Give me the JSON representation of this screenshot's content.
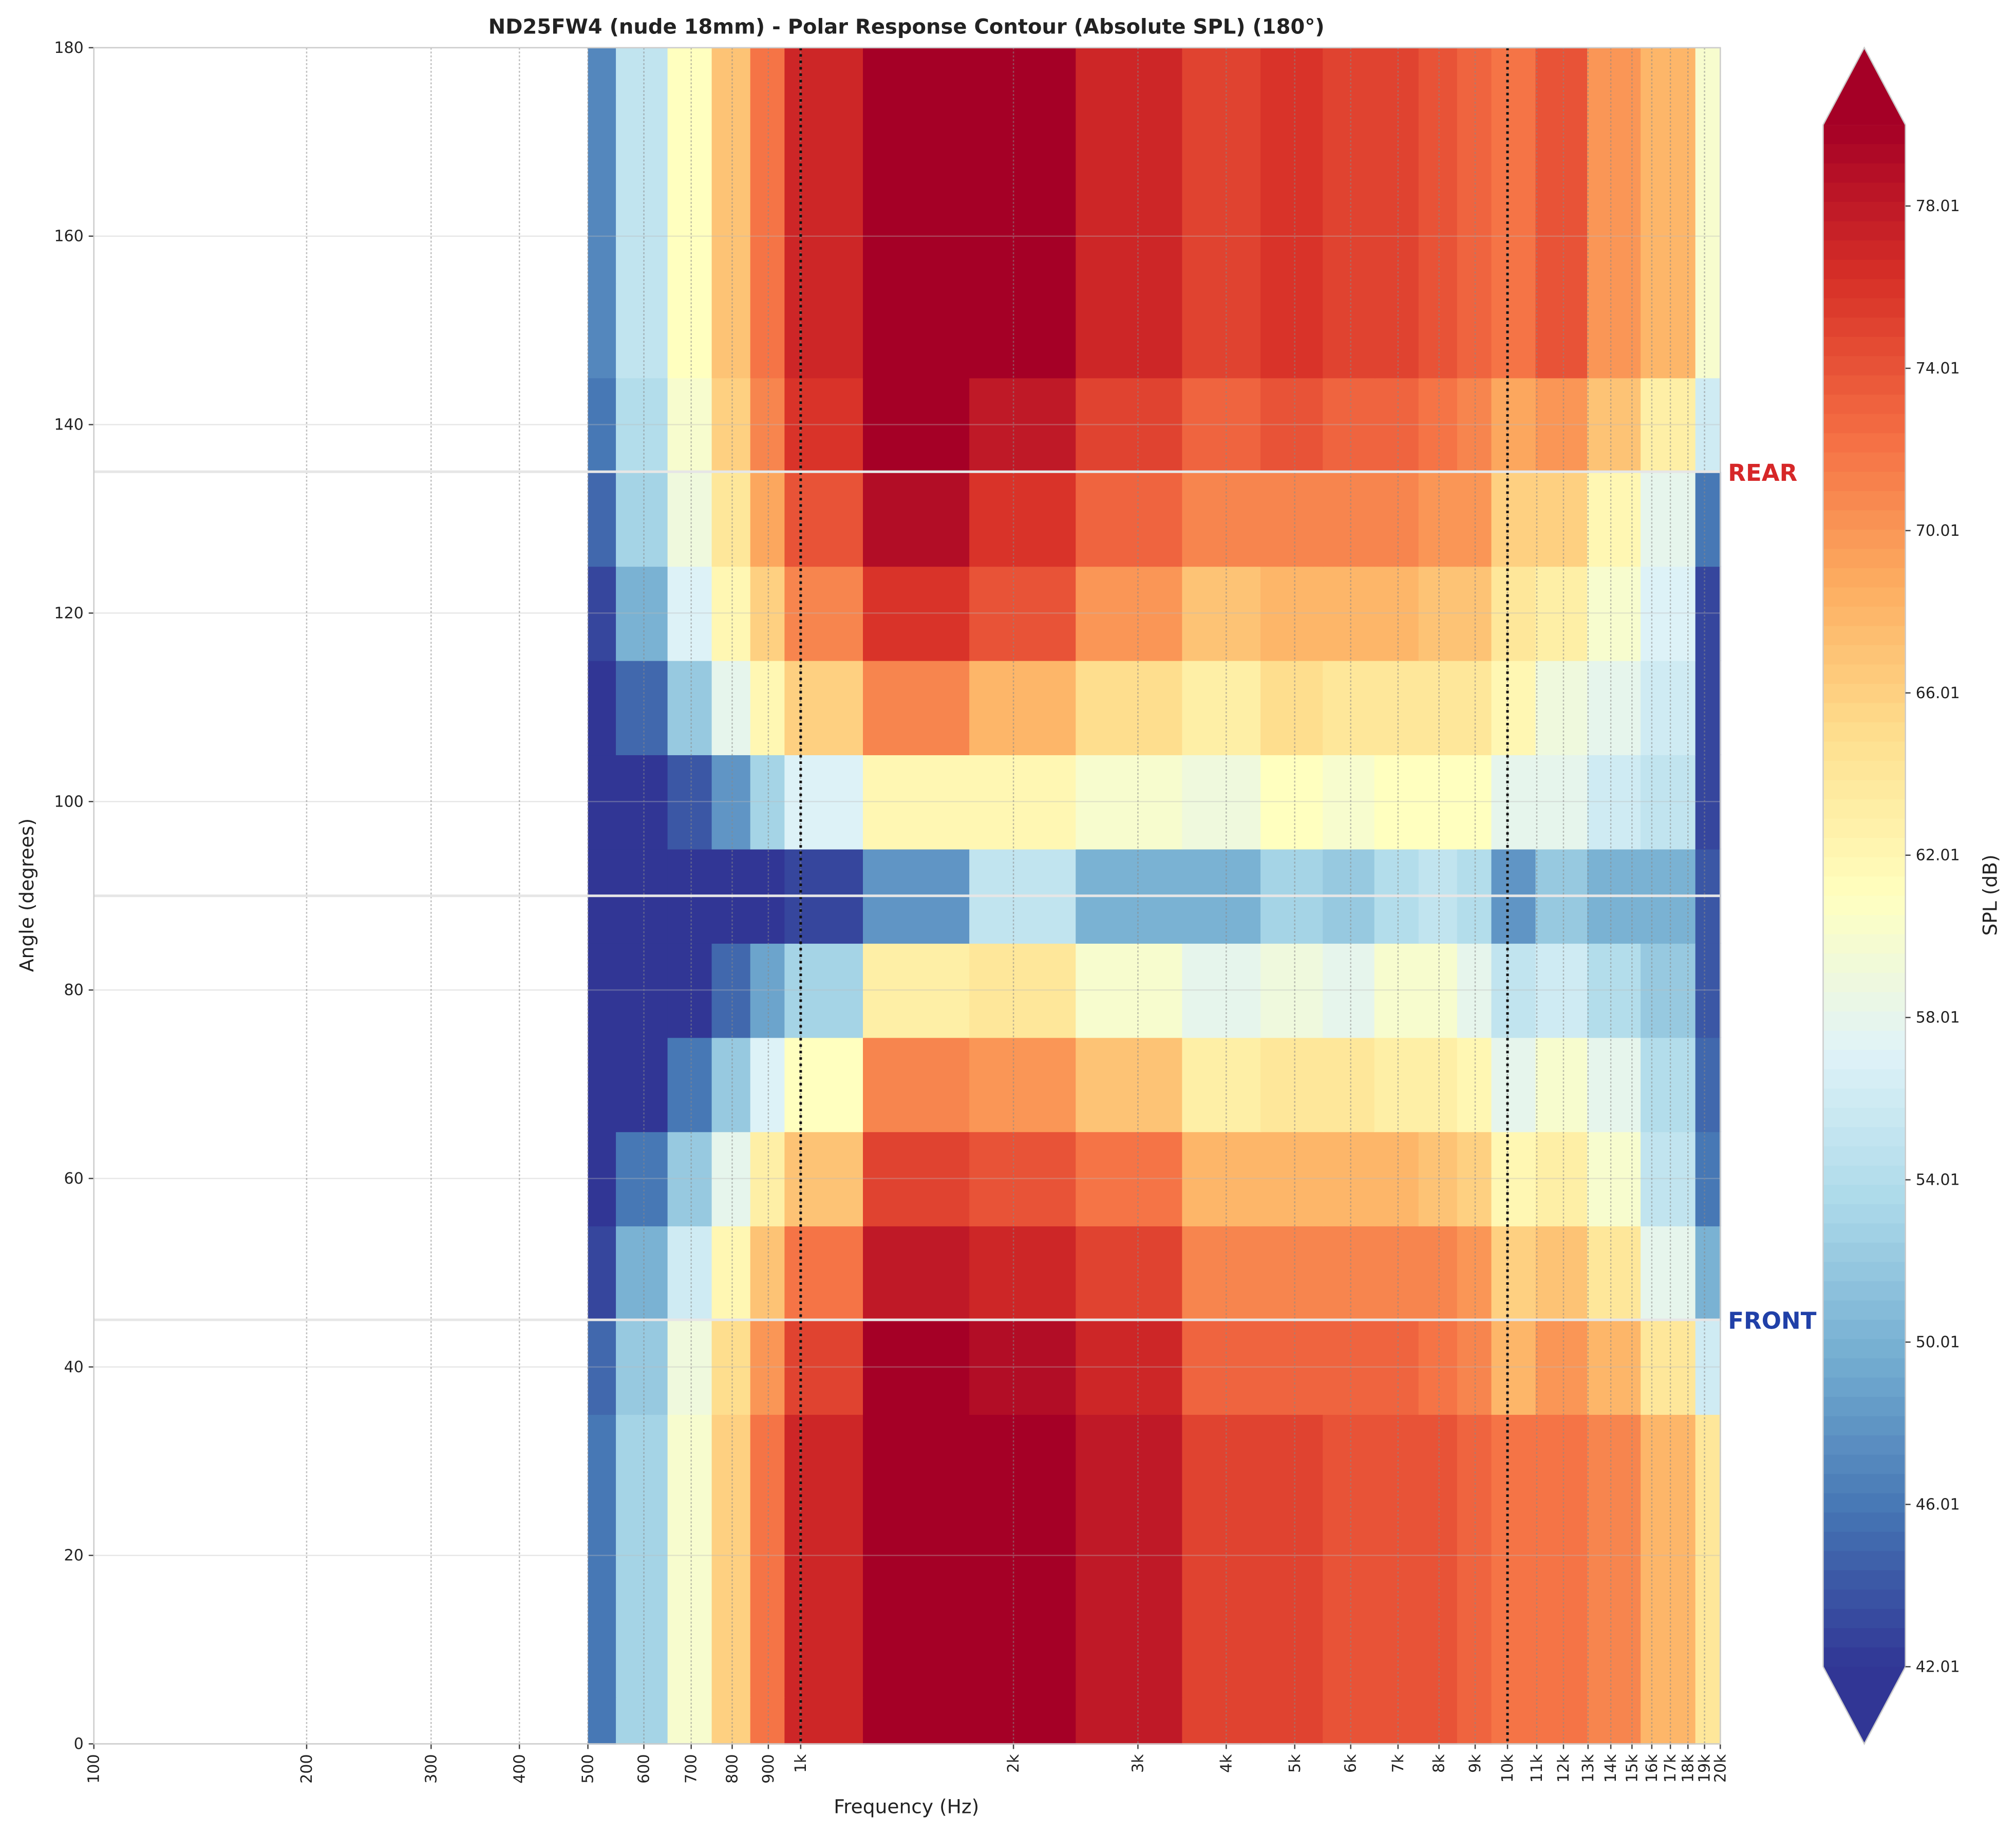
{
  "chart_data": {
    "type": "contour",
    "title": "ND25FW4 (nude 18mm) - Polar Response Contour (Absolute SPL) (180°)",
    "xlabel": "Frequency (Hz)",
    "ylabel": "Angle (degrees)",
    "colorbar_label": "SPL (dB)",
    "xscale": "log",
    "xlim": [
      100,
      20000
    ],
    "ylim": [
      0,
      180
    ],
    "zlim": [
      42.01,
      80.01
    ],
    "grid": true,
    "xticks": [
      100,
      200,
      300,
      400,
      500,
      600,
      700,
      800,
      900,
      {
        "value": 1000,
        "label": "1k"
      },
      {
        "value": 2000,
        "label": "2k"
      },
      {
        "value": 3000,
        "label": "3k"
      },
      {
        "value": 4000,
        "label": "4k"
      },
      {
        "value": 5000,
        "label": "5k"
      },
      {
        "value": 6000,
        "label": "6k"
      },
      {
        "value": 7000,
        "label": "7k"
      },
      {
        "value": 8000,
        "label": "8k"
      },
      {
        "value": 9000,
        "label": "9k"
      },
      {
        "value": 10000,
        "label": "10k"
      },
      {
        "value": 11000,
        "label": "11k"
      },
      {
        "value": 12000,
        "label": "12k"
      },
      {
        "value": 13000,
        "label": "13k"
      },
      {
        "value": 14000,
        "label": "14k"
      },
      {
        "value": 15000,
        "label": "15k"
      },
      {
        "value": 16000,
        "label": "16k"
      },
      {
        "value": 17000,
        "label": "17k"
      },
      {
        "value": 18000,
        "label": "18k"
      },
      {
        "value": 19000,
        "label": "19k"
      },
      {
        "value": 20000,
        "label": "20k"
      }
    ],
    "yticks": [
      0,
      20,
      40,
      60,
      80,
      100,
      120,
      140,
      160,
      180
    ],
    "zticks": [
      42.01,
      46.01,
      50.01,
      54.01,
      58.01,
      62.01,
      66.01,
      70.01,
      74.01,
      78.01
    ],
    "reference_lines_x": [
      1000,
      10000
    ],
    "hlines": [
      45,
      90,
      135
    ],
    "annotations": [
      {
        "text": "REAR",
        "y": 135,
        "color": "#d62728"
      },
      {
        "text": "FRONT",
        "y": 45,
        "color": "#2040a8"
      }
    ],
    "colormap": [
      "#313695",
      "#4575b4",
      "#74add1",
      "#abd9e9",
      "#e0f3f8",
      "#ffffbf",
      "#fee090",
      "#fdae61",
      "#f46d43",
      "#d73027",
      "#a50026"
    ],
    "x": [
      500,
      600,
      700,
      800,
      900,
      1000,
      1500,
      2000,
      3000,
      4000,
      5000,
      6000,
      7000,
      8000,
      9000,
      10000,
      12000,
      14000,
      17000,
      20000
    ],
    "y": [
      0,
      10,
      20,
      30,
      40,
      50,
      60,
      70,
      80,
      90,
      100,
      110,
      120,
      130,
      140,
      150,
      160,
      170,
      180
    ],
    "z": [
      [
        46,
        53,
        60,
        66,
        72,
        77,
        80,
        80,
        78,
        75,
        75,
        74,
        74,
        74,
        73,
        72,
        72,
        71,
        68,
        64
      ],
      [
        46,
        53,
        60,
        66,
        72,
        77,
        80,
        80,
        78,
        75,
        75,
        74,
        74,
        74,
        73,
        72,
        72,
        71,
        68,
        64
      ],
      [
        46,
        53,
        60,
        66,
        72,
        77,
        80,
        80,
        78,
        75,
        75,
        74,
        74,
        74,
        73,
        72,
        72,
        71,
        68,
        64
      ],
      [
        46,
        53,
        60,
        66,
        72,
        77,
        80,
        80,
        78,
        75,
        75,
        74,
        74,
        74,
        73,
        72,
        72,
        71,
        68,
        64
      ],
      [
        45,
        52,
        59,
        65,
        70,
        75,
        80,
        79,
        77,
        73,
        73,
        73,
        73,
        72,
        71,
        68,
        70,
        68,
        64,
        56
      ],
      [
        43,
        50,
        56,
        62,
        67,
        72,
        78,
        77,
        75,
        71,
        71,
        71,
        71,
        71,
        70,
        66,
        67,
        64,
        58,
        50
      ],
      [
        42,
        46,
        52,
        58,
        63,
        67,
        75,
        74,
        72,
        68,
        68,
        68,
        68,
        67,
        66,
        62,
        63,
        60,
        55,
        46
      ],
      [
        42,
        42,
        46,
        52,
        57,
        61,
        71,
        70,
        67,
        63,
        64,
        64,
        63,
        63,
        62,
        58,
        60,
        58,
        54,
        45
      ],
      [
        42,
        42,
        42,
        45,
        49,
        53,
        63,
        64,
        60,
        58,
        59,
        58,
        60,
        60,
        58,
        55,
        56,
        54,
        52,
        44
      ],
      [
        42,
        42,
        42,
        42,
        42,
        43,
        48,
        55,
        50,
        50,
        53,
        52,
        54,
        55,
        54,
        48,
        52,
        50,
        50,
        44
      ],
      [
        42,
        42,
        44,
        48,
        53,
        57,
        62,
        62,
        60,
        59,
        61,
        60,
        61,
        61,
        61,
        58,
        58,
        56,
        55,
        43
      ],
      [
        42,
        45,
        52,
        58,
        62,
        66,
        71,
        68,
        65,
        63,
        65,
        64,
        64,
        64,
        64,
        62,
        59,
        58,
        56,
        43
      ],
      [
        43,
        50,
        57,
        62,
        66,
        71,
        76,
        74,
        70,
        67,
        68,
        68,
        68,
        67,
        67,
        64,
        63,
        60,
        57,
        43
      ],
      [
        45,
        53,
        59,
        64,
        69,
        74,
        79,
        76,
        73,
        71,
        71,
        71,
        71,
        70,
        70,
        66,
        66,
        62,
        58,
        46
      ],
      [
        46,
        54,
        60,
        66,
        71,
        76,
        80,
        78,
        75,
        73,
        74,
        73,
        73,
        72,
        71,
        69,
        70,
        67,
        63,
        56
      ],
      [
        47,
        55,
        61,
        67,
        72,
        77,
        80,
        80,
        77,
        75,
        76,
        75,
        75,
        74,
        73,
        72,
        74,
        70,
        68,
        60
      ],
      [
        47,
        55,
        61,
        67,
        72,
        77,
        80,
        80,
        77,
        75,
        76,
        75,
        75,
        74,
        73,
        72,
        74,
        70,
        68,
        60
      ],
      [
        47,
        55,
        61,
        67,
        72,
        77,
        80,
        80,
        77,
        75,
        76,
        75,
        75,
        74,
        73,
        72,
        74,
        70,
        68,
        60
      ],
      [
        47,
        55,
        61,
        67,
        72,
        77,
        80,
        80,
        77,
        75,
        76,
        75,
        75,
        74,
        73,
        72,
        74,
        70,
        68,
        60
      ]
    ]
  }
}
